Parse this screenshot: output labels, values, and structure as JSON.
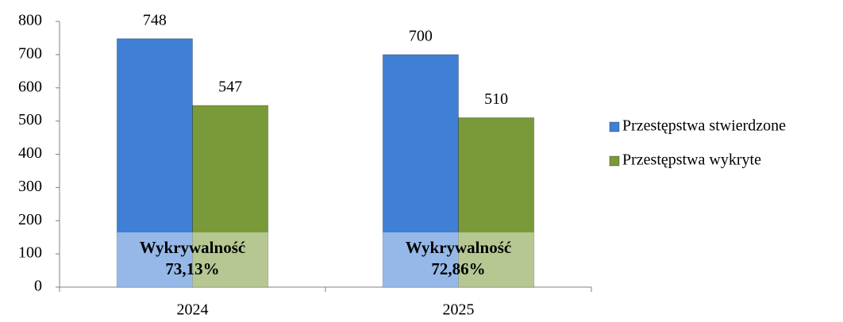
{
  "chart_data": {
    "type": "bar",
    "categories": [
      "2024",
      "2025"
    ],
    "series": [
      {
        "name": "Przestępstwa stwierdzone",
        "color": "#3f7fd6",
        "values": [
          748,
          700
        ]
      },
      {
        "name": "Przestępstwa wykryte",
        "color": "#7a9a3a",
        "values": [
          547,
          510
        ]
      }
    ],
    "ylim": [
      0,
      800
    ],
    "yticks": [
      0,
      100,
      200,
      300,
      400,
      500,
      600,
      700,
      800
    ],
    "annotations": [
      {
        "title": "Wykrywalność",
        "text": "73,13%"
      },
      {
        "title": "Wykrywalność",
        "text": "72,86%"
      }
    ],
    "legend": "right"
  }
}
